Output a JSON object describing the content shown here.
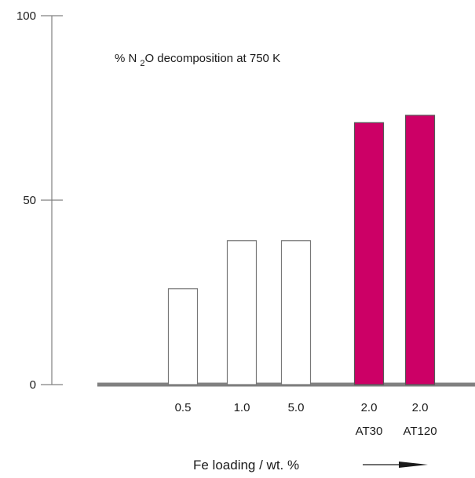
{
  "chart_data": {
    "type": "bar",
    "title_parts": [
      "% N",
      "2",
      "O decomposition at 750 K"
    ],
    "xlabel": "Fe loading / wt. %",
    "ylim": [
      0,
      100
    ],
    "yticks": [
      0,
      50,
      100
    ],
    "ytick_labels": [
      "0",
      "50",
      "100"
    ],
    "categories": [
      {
        "line1": "0.5",
        "line2": ""
      },
      {
        "line1": "1.0",
        "line2": ""
      },
      {
        "line1": "5.0",
        "line2": ""
      },
      {
        "line1": "2.0",
        "line2": "AT30"
      },
      {
        "line1": "2.0",
        "line2": "AT120"
      }
    ],
    "values": [
      26,
      39,
      39,
      71,
      73
    ],
    "fills": [
      "#ffffff",
      "#ffffff",
      "#ffffff",
      "#cc0066",
      "#cc0066"
    ],
    "colors": {
      "axis": "#808080",
      "bar_outline": "#777777",
      "highlight": "#cc0066",
      "text": "#1a1a1a"
    },
    "grid": false,
    "legend": "none"
  }
}
